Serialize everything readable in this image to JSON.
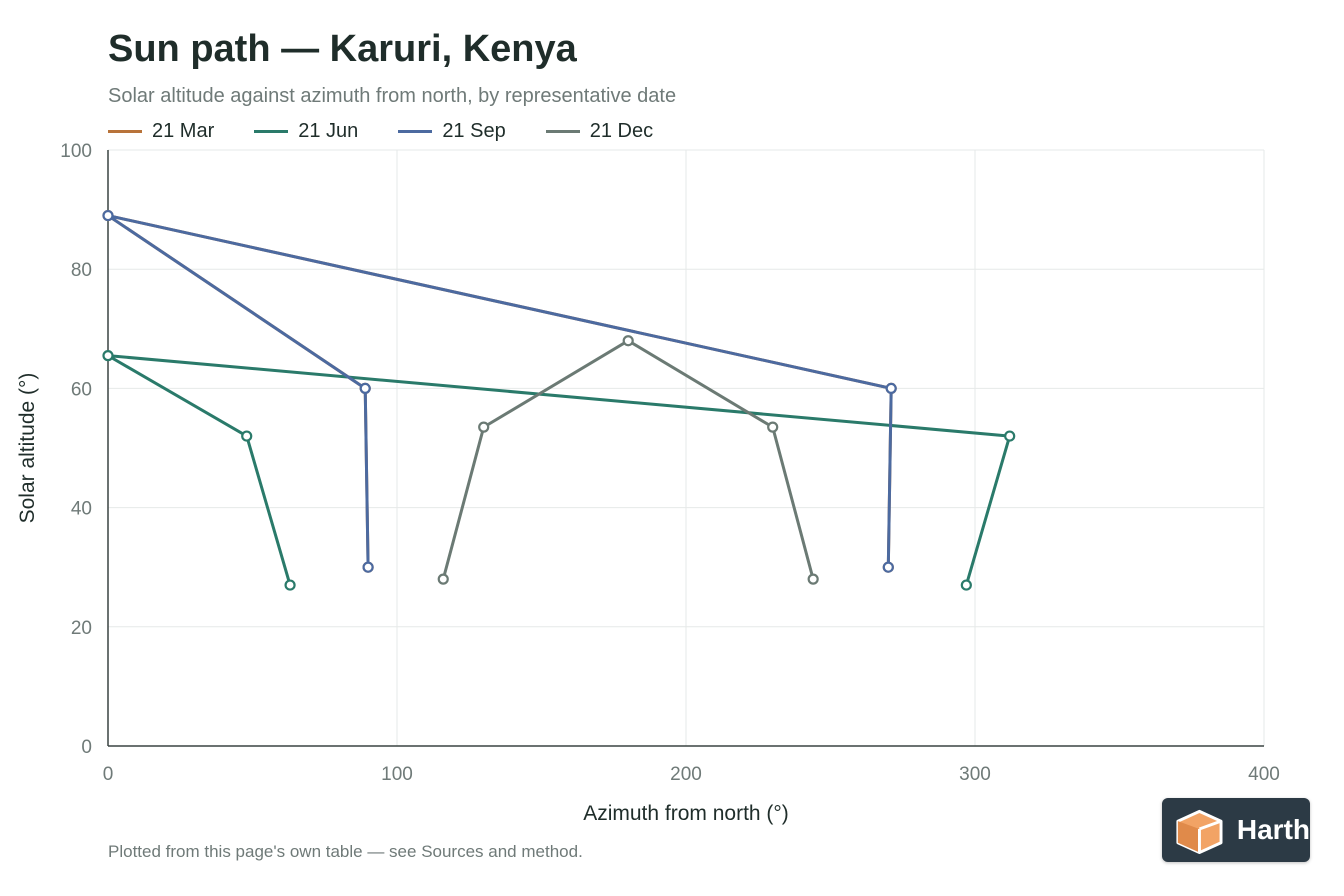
{
  "title": "Sun path — Karuri, Kenya",
  "subtitle": "Solar altitude against azimuth from north, by representative date",
  "footnote": "Plotted from this page's own table — see Sources and method.",
  "logo": {
    "text": "Harth",
    "icon": "cube-logo-icon",
    "bg_color": "#2c3a45",
    "accent_color": "#f2a365"
  },
  "chart_data": {
    "type": "line",
    "xlabel": "Azimuth from north (°)",
    "ylabel": "Solar altitude (°)",
    "xlim": [
      0,
      400
    ],
    "ylim": [
      0,
      100
    ],
    "xticks": [
      0,
      100,
      200,
      300,
      400
    ],
    "yticks": [
      0,
      20,
      40,
      60,
      80,
      100
    ],
    "grid": true,
    "legend_position": "top-left",
    "series": [
      {
        "name": "21 Mar",
        "color": "#b8733a",
        "x": [
          90,
          89,
          0,
          271,
          270
        ],
        "y": [
          30,
          60,
          89,
          60,
          30
        ]
      },
      {
        "name": "21 Jun",
        "color": "#2a7a6a",
        "x": [
          63,
          48,
          0,
          312,
          297
        ],
        "y": [
          27,
          52,
          65.5,
          52,
          27
        ]
      },
      {
        "name": "21 Sep",
        "color": "#4c6aa0",
        "x": [
          90,
          89,
          0,
          271,
          270
        ],
        "y": [
          30,
          60,
          89,
          60,
          30
        ]
      },
      {
        "name": "21 Dec",
        "color": "#6b7a74",
        "x": [
          116,
          130,
          180,
          230,
          244
        ],
        "y": [
          28,
          53.5,
          68,
          53.5,
          28
        ]
      }
    ]
  }
}
